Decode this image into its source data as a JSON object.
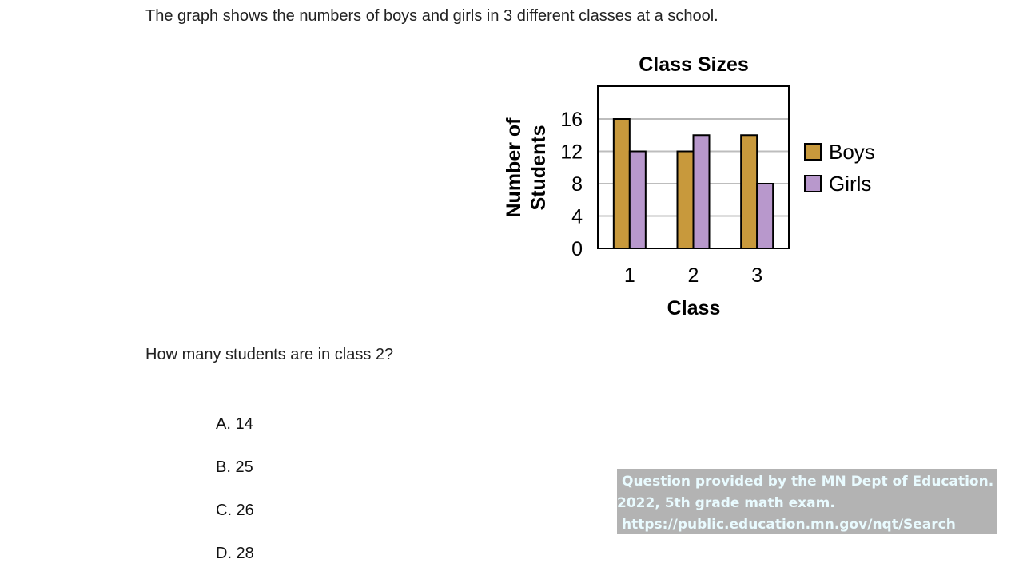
{
  "stem": "The graph shows the numbers of boys and girls in 3 different classes at a school.",
  "question": "How many students are in class 2?",
  "choices": [
    "A. 14",
    "B. 25",
    "C. 26",
    "D. 28"
  ],
  "credit": {
    "line1": "Question provided by the MN Dept of Education.",
    "line2": "2022, 5th grade math exam.",
    "line3": "https://public.education.mn.gov/nqt/Search"
  },
  "chart_data": {
    "type": "bar",
    "title": "Class Sizes",
    "xlabel": "Class",
    "ylabel": [
      "Number of",
      "Students"
    ],
    "categories": [
      "1",
      "2",
      "3"
    ],
    "series": [
      {
        "name": "Boys",
        "values": [
          16,
          12,
          14
        ],
        "color": "#c8993c"
      },
      {
        "name": "Girls",
        "values": [
          12,
          14,
          8
        ],
        "color": "#b898cc"
      }
    ],
    "ylim": [
      0,
      16
    ],
    "yticks": [
      0,
      4,
      8,
      12,
      16
    ],
    "grid": true,
    "legend": "right"
  }
}
